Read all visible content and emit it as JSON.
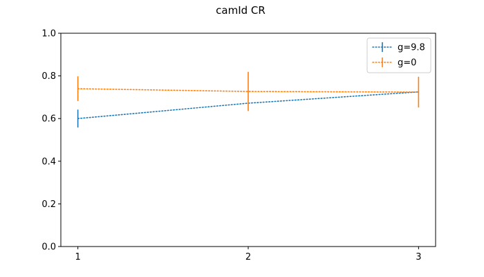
{
  "chart_data": {
    "type": "line",
    "title": "camId CR",
    "xlabel": "",
    "ylabel": "",
    "x": [
      1,
      2,
      3
    ],
    "x_ticks": [
      "1",
      "2",
      "3"
    ],
    "xlim": [
      0.9,
      3.1
    ],
    "ylim": [
      0.0,
      1.0
    ],
    "y_ticks": [
      "0.0",
      "0.2",
      "0.4",
      "0.6",
      "0.8",
      "1.0"
    ],
    "grid": false,
    "legend_position": "top-right",
    "series": [
      {
        "name": "g=9.8",
        "color": "#1f77b4",
        "values": [
          0.6,
          0.672,
          0.725
        ],
        "errors": [
          0.042,
          0.0,
          0.0
        ]
      },
      {
        "name": "g=0",
        "color": "#ff7f0e",
        "values": [
          0.74,
          0.727,
          0.724
        ],
        "errors": [
          0.058,
          0.092,
          0.072
        ]
      }
    ]
  }
}
